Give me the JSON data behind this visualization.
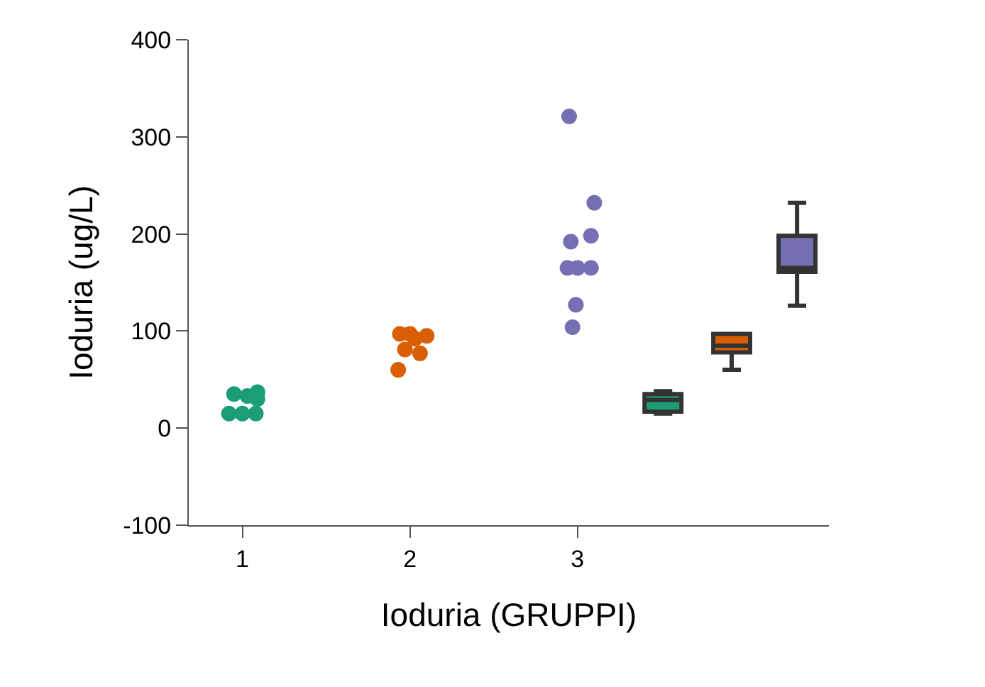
{
  "chart_data": {
    "type": "scatter",
    "xlabel": "Ioduria (GRUPPI)",
    "ylabel": "Ioduria (ug/L)",
    "marker": "circle",
    "grid": false,
    "xlim": [
      0.68,
      4.5
    ],
    "xticks": [
      1,
      2,
      3
    ],
    "ylim": [
      -100,
      400
    ],
    "yticks": [
      -100,
      0,
      100,
      200,
      300,
      400
    ],
    "series": [
      {
        "color": "#1b9e77",
        "x": [
          0.92,
          1.0,
          1.08,
          0.95,
          1.03,
          1.09,
          1.09
        ],
        "values": [
          15,
          15,
          15,
          35,
          33,
          37,
          30
        ]
      },
      {
        "color": "#d95f02",
        "x": [
          1.94,
          2.0,
          2.1,
          2.03,
          1.97,
          2.06,
          1.93
        ],
        "values": [
          97,
          97,
          95,
          92,
          81,
          77,
          60
        ]
      },
      {
        "color": "#7570b3",
        "x": [
          2.95,
          3.1,
          3.08,
          2.96,
          2.94,
          3.0,
          3.08,
          2.99,
          2.97
        ],
        "values": [
          321,
          232,
          198,
          192,
          165,
          165,
          165,
          127,
          104
        ]
      },
      {
        "type": "box",
        "color": "#1b9e77",
        "x": [
          3.51
        ],
        "boxes": [
          {
            "low": 15,
            "q1": 17,
            "median": 29,
            "q3": 35,
            "high": 38
          }
        ]
      },
      {
        "type": "box",
        "color": "#d95f02",
        "x": [
          3.92
        ],
        "boxes": [
          {
            "low": 60,
            "q1": 78,
            "median": 85,
            "q3": 97,
            "high": 97
          }
        ]
      },
      {
        "type": "box",
        "color": "#7570b3",
        "x": [
          4.31
        ],
        "boxes": [
          {
            "low": 126,
            "q1": 161,
            "median": 165,
            "q3": 198,
            "high": 232
          }
        ]
      }
    ]
  }
}
